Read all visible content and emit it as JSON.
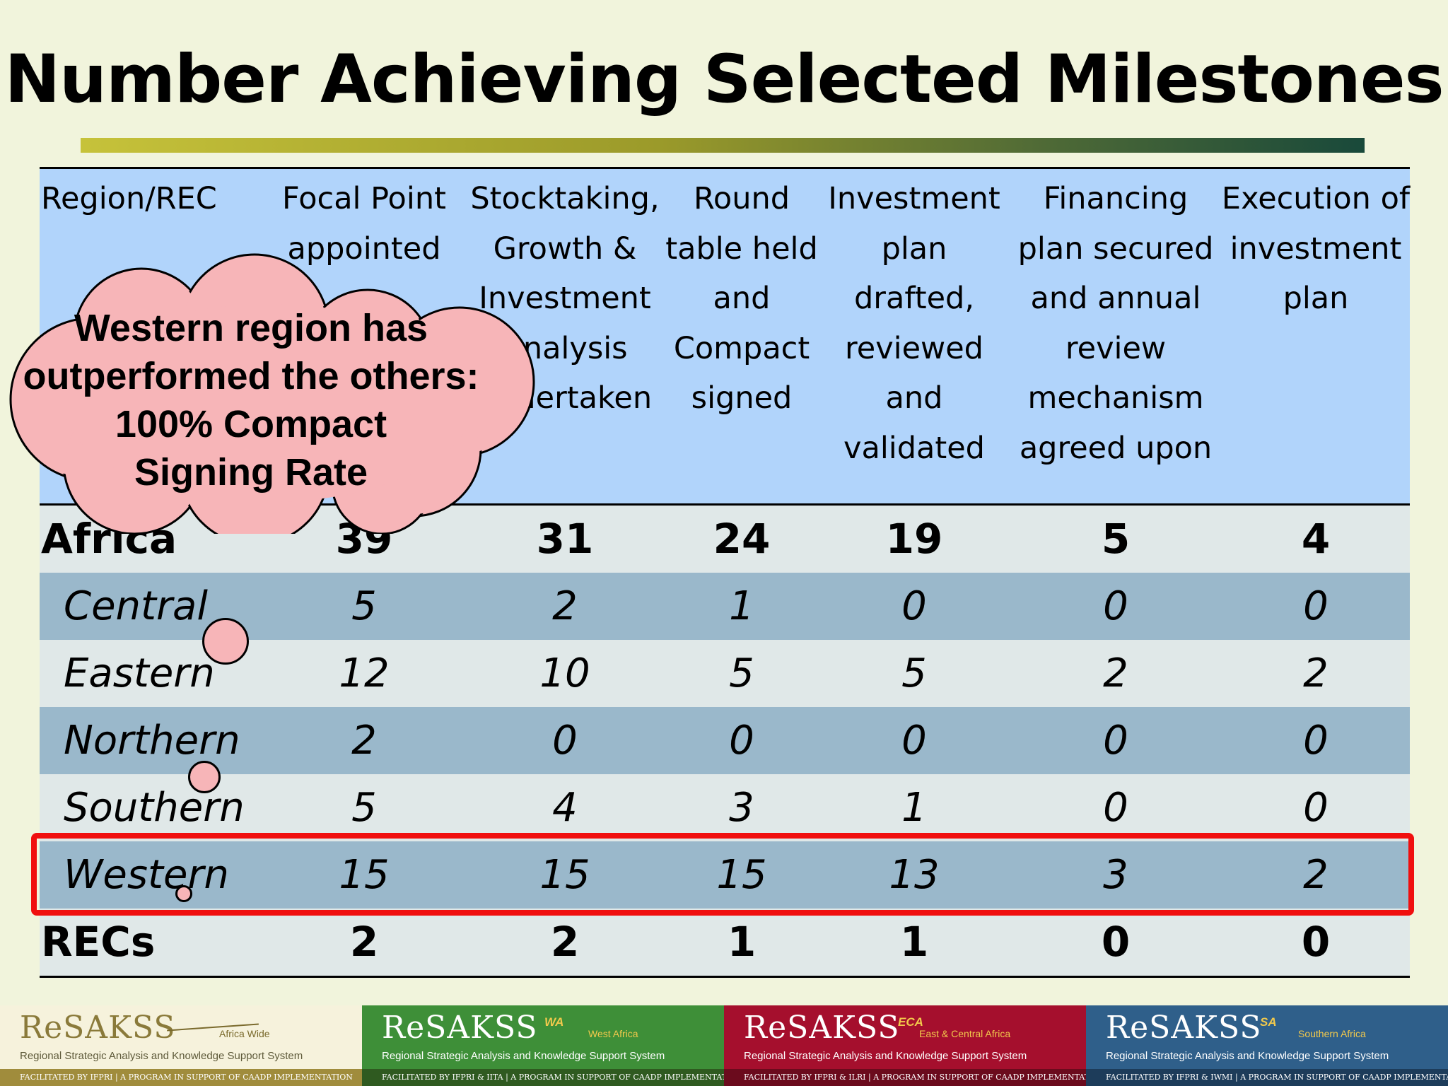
{
  "title": "Number Achieving Selected Milestones",
  "table": {
    "headers": [
      "Region/REC",
      "Focal Point\nappointed",
      "Stocktaking,\nGrowth &\nInvestment\nAnalysis\nundertaken",
      "Round\ntable held\nand\nCompact\nsigned",
      "Investment\nplan\ndrafted,\nreviewed\nand\nvalidated",
      "Financing\nplan secured\nand annual\nreview\nmechanism\nagreed upon",
      "Execution of\ninvestment\nplan"
    ],
    "rows": [
      {
        "name": "Africa",
        "values": [
          "39",
          "31",
          "24",
          "19",
          "5",
          "4"
        ]
      },
      {
        "name": "Central",
        "values": [
          "5",
          "2",
          "1",
          "0",
          "0",
          "0"
        ]
      },
      {
        "name": "Eastern",
        "values": [
          "12",
          "10",
          "5",
          "5",
          "2",
          "2"
        ]
      },
      {
        "name": "Northern",
        "values": [
          "2",
          "0",
          "0",
          "0",
          "0",
          "0"
        ]
      },
      {
        "name": "Southern",
        "values": [
          "5",
          "4",
          "3",
          "1",
          "0",
          "0"
        ]
      },
      {
        "name": "Western",
        "values": [
          "15",
          "15",
          "15",
          "13",
          "3",
          "2"
        ]
      },
      {
        "name": "RECs",
        "values": [
          "2",
          "2",
          "1",
          "1",
          "0",
          "0"
        ]
      }
    ]
  },
  "callout": "Western region has\noutperformed the others:\n100% Compact\nSigning Rate",
  "colors": {
    "highlight": "#f00f0f",
    "cloud": "#f7b5b8",
    "header_bg": "#b1d4fb"
  },
  "footer": [
    {
      "brand": "ReSAKSS",
      "region": "Africa Wide",
      "sup": "",
      "subtitle": "Regional Strategic Analysis and Knowledge Support System",
      "bar": "FACILITATED BY IFPRI  |  A PROGRAM IN SUPPORT OF CAADP IMPLEMENTATION"
    },
    {
      "brand": "ReSAKSS",
      "region": "West Africa",
      "sup": "WA",
      "subtitle": "Regional Strategic Analysis and Knowledge Support System",
      "bar": "FACILITATED BY IFPRI & IITA  |  A PROGRAM IN SUPPORT OF CAADP IMPLEMENTATION"
    },
    {
      "brand": "ReSAKSS",
      "region": "East & Central Africa",
      "sup": "ECA",
      "subtitle": "Regional Strategic Analysis and Knowledge Support System",
      "bar": "FACILITATED BY IFPRI & ILRI  |  A PROGRAM IN SUPPORT OF CAADP IMPLEMENTATION"
    },
    {
      "brand": "ReSAKSS",
      "region": "Southern Africa",
      "sup": "SA",
      "subtitle": "Regional Strategic Analysis and Knowledge Support System",
      "bar": "FACILITATED BY IFPRI & IWMI  |  A PROGRAM IN SUPPORT OF CAADP IMPLEMENTATION"
    }
  ]
}
